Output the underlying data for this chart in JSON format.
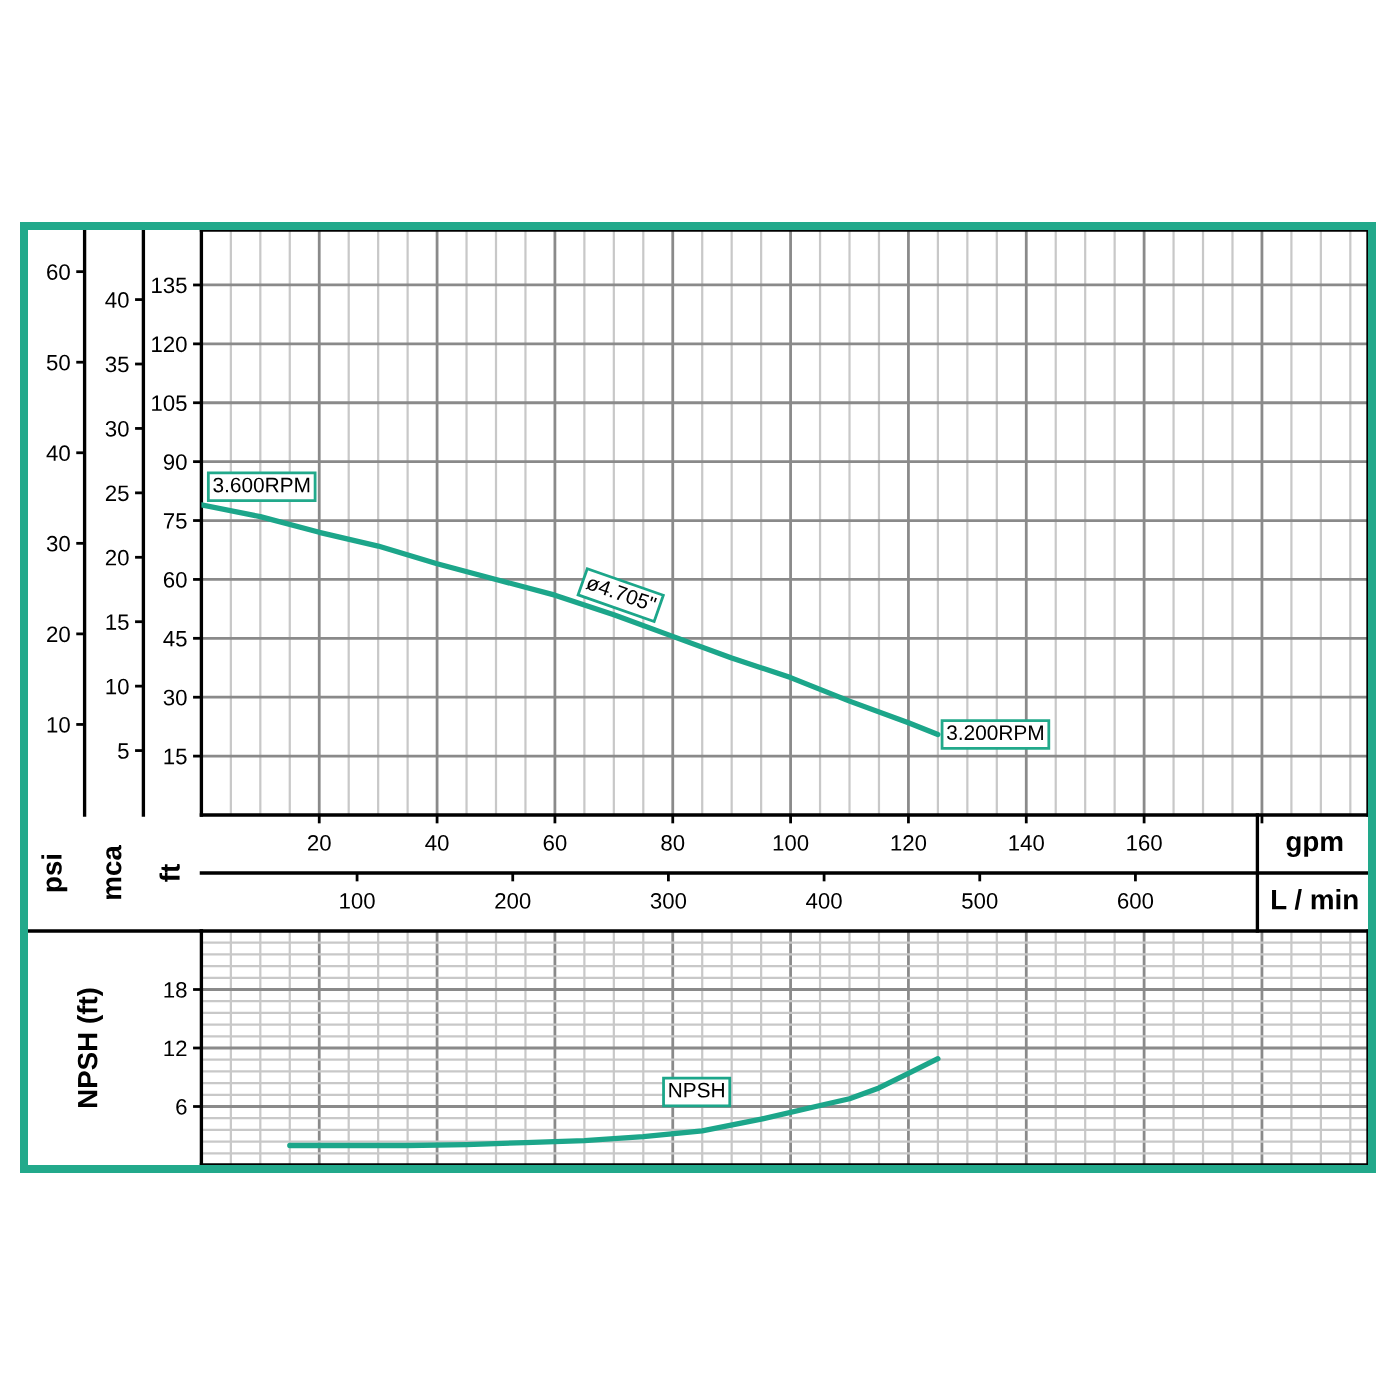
{
  "chart_data": [
    {
      "type": "line",
      "xlabel": "gpm",
      "x2label": "L / min",
      "ylabel": "ft",
      "y2label": "psi",
      "y3label": "mca",
      "xlim": [
        0,
        198
      ],
      "xticks": [
        20,
        40,
        60,
        80,
        100,
        120,
        140,
        160,
        {
          "value": 180,
          "label": null
        }
      ],
      "x2lim": [
        0,
        749.4
      ],
      "x2ticks": [
        100,
        200,
        300,
        400,
        500,
        600
      ],
      "ylim": [
        0,
        149
      ],
      "yticks": [
        15,
        30,
        45,
        60,
        75,
        90,
        105,
        120,
        135
      ],
      "y2lim": [
        0,
        64.6
      ],
      "y2ticks": [
        10,
        20,
        30,
        40,
        50,
        60
      ],
      "y3lim": [
        0,
        45.4
      ],
      "y3ticks": [
        5,
        10,
        15,
        20,
        25,
        30,
        35,
        40
      ],
      "grid": true,
      "line_style": "solid",
      "series": [
        {
          "name": "ø4.705\"",
          "color": "#1ca68a",
          "x": [
            0,
            10,
            20,
            30,
            40,
            50,
            60,
            70,
            80,
            90,
            100,
            110,
            120,
            125
          ],
          "values": [
            79,
            76,
            72,
            68.5,
            64,
            60,
            56,
            51,
            45.5,
            40,
            35,
            29,
            23.5,
            20.5
          ]
        }
      ],
      "annotations": [
        {
          "text": "3.600RPM",
          "x": 0,
          "y": 79
        },
        {
          "text": "3.200RPM",
          "x": 125,
          "y": 20.5
        }
      ]
    },
    {
      "type": "line",
      "ylabel": "NPSH (ft)",
      "xlim": [
        0,
        198
      ],
      "xticks": [
        20,
        40,
        60,
        80,
        100,
        120,
        140,
        160,
        180
      ],
      "ylim": [
        0,
        24
      ],
      "yticks": [
        6,
        12,
        18
      ],
      "tick_labels": "y",
      "grid": true,
      "line_style": "solid",
      "series": [
        {
          "name": "NPSH",
          "color": "#1ca68a",
          "x": [
            15,
            25,
            35,
            45,
            55,
            65,
            75,
            85,
            95,
            105,
            110,
            115,
            120,
            125
          ],
          "values": [
            2,
            2,
            2,
            2.1,
            2.3,
            2.5,
            2.9,
            3.5,
            4.7,
            6.1,
            6.8,
            7.9,
            9.4,
            10.9
          ]
        }
      ]
    }
  ]
}
